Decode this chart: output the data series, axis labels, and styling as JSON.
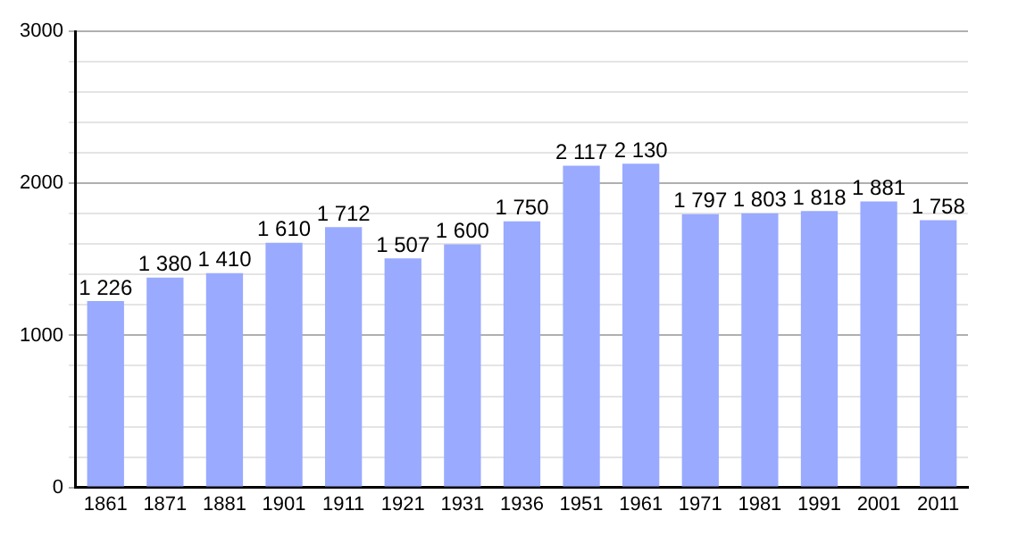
{
  "chart_data": {
    "type": "bar",
    "categories": [
      "1861",
      "1871",
      "1881",
      "1901",
      "1911",
      "1921",
      "1931",
      "1936",
      "1951",
      "1961",
      "1971",
      "1981",
      "1991",
      "2001",
      "2011"
    ],
    "values": [
      1226,
      1380,
      1410,
      1610,
      1712,
      1507,
      1600,
      1750,
      2117,
      2130,
      1797,
      1803,
      1818,
      1881,
      1758
    ],
    "value_labels": [
      "1 226",
      "1 380",
      "1 410",
      "1 610",
      "1 712",
      "1 507",
      "1 600",
      "1 750",
      "2 117",
      "2 130",
      "1 797",
      "1 803",
      "1 818",
      "1 881",
      "1 758"
    ],
    "color": "#99aaff",
    "ylim": [
      0,
      3000
    ],
    "yticks": [
      0,
      {
        "value": 200,
        "label": null
      },
      {
        "value": 400,
        "label": null
      },
      {
        "value": 600,
        "label": null
      },
      {
        "value": 800,
        "label": null
      },
      1000,
      {
        "value": 1200,
        "label": null
      },
      {
        "value": 1400,
        "label": null
      },
      {
        "value": 1600,
        "label": null
      },
      {
        "value": 1800,
        "label": null
      },
      2000,
      {
        "value": 2200,
        "label": null
      },
      {
        "value": 2400,
        "label": null
      },
      {
        "value": 2600,
        "label": null
      },
      {
        "value": 2800,
        "label": null
      },
      3000
    ],
    "grid": "y"
  }
}
